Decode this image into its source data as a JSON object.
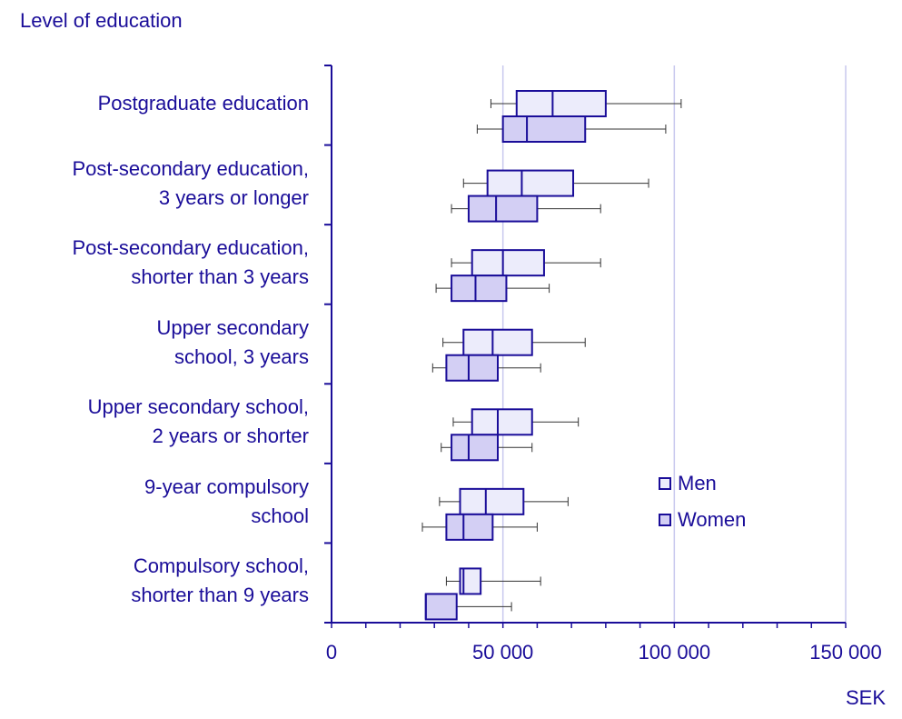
{
  "chart_data": {
    "type": "boxplot",
    "ylabel": "Level of education",
    "xlabel": "SEK",
    "xlim": [
      0,
      150000
    ],
    "xticks": [
      0,
      50000,
      100000,
      150000
    ],
    "xtick_labels": [
      "0",
      "50 000",
      "100 000",
      "150 000"
    ],
    "grid": "vertical",
    "legend_position": "right",
    "categories": [
      [
        "Postgraduate education"
      ],
      [
        "Post-secondary education,",
        "3 years or longer"
      ],
      [
        "Post-secondary education,",
        "shorter than 3 years"
      ],
      [
        "Upper secondary",
        "school, 3 years"
      ],
      [
        "Upper secondary school,",
        "2 years or shorter"
      ],
      [
        "9-year compulsory",
        "school"
      ],
      [
        "Compulsory school,",
        "shorter than 9 years"
      ]
    ],
    "series": [
      {
        "name": "Men",
        "color": "#ececfb",
        "boxes": [
          {
            "min": 46500,
            "q1": 54000,
            "median": 64500,
            "q3": 80000,
            "max": 102000
          },
          {
            "min": 38500,
            "q1": 45500,
            "median": 55500,
            "q3": 70500,
            "max": 92500
          },
          {
            "min": 35000,
            "q1": 41000,
            "median": 50000,
            "q3": 62000,
            "max": 78500
          },
          {
            "min": 32500,
            "q1": 38500,
            "median": 47000,
            "q3": 58500,
            "max": 74000
          },
          {
            "min": 35500,
            "q1": 41000,
            "median": 48500,
            "q3": 58500,
            "max": 72000
          },
          {
            "min": 31500,
            "q1": 37500,
            "median": 45000,
            "q3": 56000,
            "max": 69000
          },
          {
            "min": 33500,
            "q1": 37500,
            "median": 38500,
            "q3": 43500,
            "max": 61000
          }
        ]
      },
      {
        "name": "Women",
        "color": "#d3cff4",
        "boxes": [
          {
            "min": 42500,
            "q1": 50000,
            "median": 57000,
            "q3": 74000,
            "max": 97500
          },
          {
            "min": 35000,
            "q1": 40000,
            "median": 48000,
            "q3": 60000,
            "max": 78500
          },
          {
            "min": 30500,
            "q1": 35000,
            "median": 42000,
            "q3": 51000,
            "max": 63500
          },
          {
            "min": 29500,
            "q1": 33500,
            "median": 40000,
            "q3": 48500,
            "max": 61000
          },
          {
            "min": 32000,
            "q1": 35000,
            "median": 40000,
            "q3": 48500,
            "max": 58500
          },
          {
            "min": 26500,
            "q1": 33500,
            "median": 38500,
            "q3": 47000,
            "max": 60000
          },
          {
            "min": 27500,
            "q1": 27500,
            "median": 27500,
            "q3": 36500,
            "max": 52500
          }
        ]
      }
    ]
  }
}
